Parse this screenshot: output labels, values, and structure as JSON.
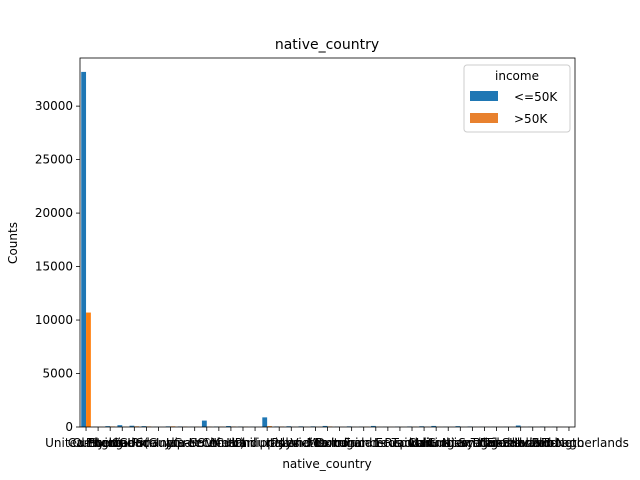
{
  "chart_data": {
    "type": "bar",
    "title": "native_country",
    "xlabel": "native_country",
    "ylabel": "Counts",
    "ylim": [
      0,
      34500
    ],
    "yticks": [
      0,
      5000,
      10000,
      15000,
      20000,
      25000,
      30000
    ],
    "grid": false,
    "legend": {
      "title": "income",
      "placement": "top-right"
    },
    "categories": [
      "United-States",
      "Cambodia",
      "England",
      "Puerto-Rico",
      "Canada",
      "Germany",
      "Outlying-US(Guam-USVI-etc)",
      "India",
      "Japan",
      "Greece",
      "South",
      "China",
      "Cuba",
      "Iran",
      "Honduras",
      "Philippines",
      "Italy",
      "Poland",
      "Jamaica",
      "Vietnam",
      "Mexico",
      "Portugal",
      "Ireland",
      "France",
      "Dominican-Republic",
      "Laos",
      "Ecuador",
      "Taiwan",
      "Haiti",
      "Columbia",
      "Hungary",
      "Guatemala",
      "Nicaragua",
      "Scotland",
      "Thailand",
      "Yugoslavia",
      "El-Salvador",
      "Trinadad&Tobago",
      "Peru",
      "Hong",
      "Holand-Netherlands"
    ],
    "series": [
      {
        "name": "<=50K",
        "color": "#1f77b4",
        "values": [
          33200,
          20,
          80,
          170,
          120,
          80,
          20,
          60,
          50,
          20,
          600,
          40,
          90,
          40,
          20,
          900,
          50,
          70,
          60,
          60,
          100,
          30,
          60,
          30,
          100,
          15,
          30,
          50,
          70,
          100,
          20,
          80,
          50,
          20,
          20,
          20,
          140,
          25,
          40,
          20,
          1
        ]
      },
      {
        "name": ">50K",
        "color": "#ff7f0e",
        "values": [
          10700,
          10,
          50,
          20,
          60,
          50,
          0,
          60,
          30,
          20,
          30,
          30,
          40,
          20,
          0,
          80,
          40,
          10,
          10,
          10,
          50,
          10,
          10,
          20,
          10,
          5,
          5,
          20,
          10,
          10,
          5,
          5,
          5,
          5,
          5,
          5,
          10,
          5,
          5,
          10,
          0
        ]
      }
    ]
  }
}
